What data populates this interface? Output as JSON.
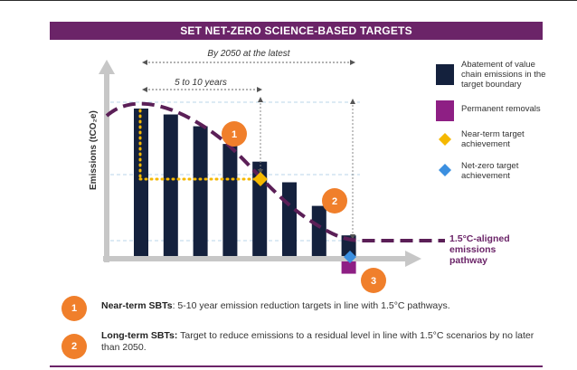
{
  "banner": {
    "title": "SET NET-ZERO SCIENCE-BASED TARGETS"
  },
  "chart_data": {
    "type": "bar",
    "ylabel": "Emissions (tCO₂e)",
    "categories": [
      "",
      "",
      "",
      "",
      "",
      "",
      "",
      ""
    ],
    "values": [
      100,
      96,
      88,
      76,
      64,
      50,
      34,
      14
    ],
    "removals": 12,
    "pathway": "1.5°C-aligned emissions pathway",
    "annotations": {
      "by_2050": "By 2050 at the latest",
      "five_to_ten": "5 to 10 years",
      "marker_1": "1",
      "marker_2": "2",
      "marker_3": "3"
    },
    "colors": {
      "bar": "#14213d",
      "removal": "#8e1f84",
      "pathway": "#5b1f57",
      "near_term": "#f5b800",
      "net_zero": "#3b8fe0",
      "marker": "#f07f2b",
      "axis": "#c7c7c7"
    }
  },
  "legend": [
    {
      "label": "Abatement of value chain emissions in the target boundary",
      "icon": "navy-square"
    },
    {
      "label": "Permanent removals",
      "icon": "purple-square"
    },
    {
      "label": "Near-term target achievement",
      "icon": "yellow-diamond"
    },
    {
      "label": "Net-zero target achievement",
      "icon": "blue-diamond"
    }
  ],
  "notes": [
    {
      "number": "1",
      "title": "Near-term SBTs",
      "text": ": 5-10 year emission reduction targets in line with 1.5°C pathways."
    },
    {
      "number": "2",
      "title": "Long-term SBTs:",
      "text": " Target to reduce emissions to a residual level in line with 1.5°C scenarios by no later than 2050."
    }
  ]
}
